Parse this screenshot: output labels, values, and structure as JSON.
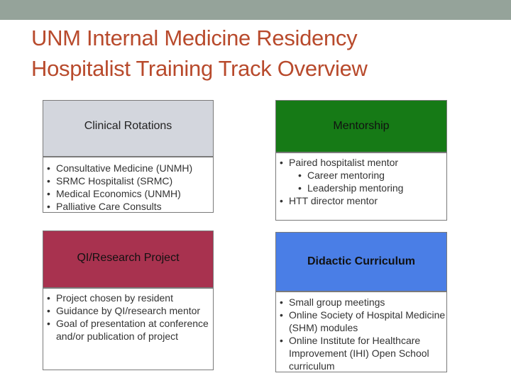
{
  "slide": {
    "title_line1": "UNM Internal Medicine Residency",
    "title_line2": "Hospitalist Training Track Overview"
  },
  "colors": {
    "topbar": "#95a39a",
    "title": "#b84a2c",
    "clinical_header": "#d3d6dd",
    "mentorship_header": "#167a16",
    "qi_header": "#a8324f",
    "didactic_header": "#4a7ee6"
  },
  "sections": {
    "clinical": {
      "header": "Clinical Rotations",
      "items": [
        "Consultative Medicine (UNMH)",
        "SRMC Hospitalist (SRMC)",
        "Medical Economics (UNMH)",
        "Palliative Care Consults"
      ]
    },
    "mentorship": {
      "header": "Mentorship",
      "items": [
        "Paired hospitalist mentor",
        "Career mentoring",
        "Leadership mentoring",
        "HTT director mentor"
      ]
    },
    "qi": {
      "header": "QI/Research Project",
      "items": [
        "Project chosen by resident",
        "Guidance by QI/research mentor",
        "Goal of presentation at conference and/or publication of project"
      ]
    },
    "didactic": {
      "header": "Didactic Curriculum",
      "items": [
        "Small group meetings",
        "Online Society of Hospital Medicine (SHM) modules",
        "Online Institute for Healthcare Improvement (IHI) Open School curriculum"
      ]
    }
  }
}
